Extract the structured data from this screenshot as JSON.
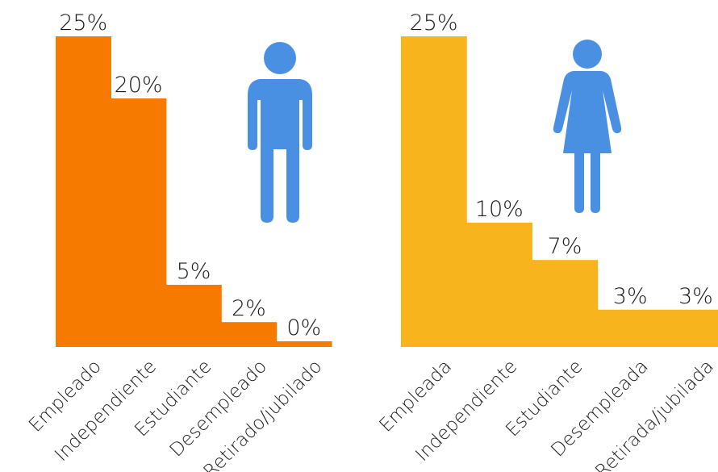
{
  "chart_data": [
    {
      "type": "bar",
      "categories": [
        "Empleado",
        "Independiente",
        "Estudiante",
        "Desempleado",
        "Retirado/jubilado"
      ],
      "values": [
        25,
        20,
        5,
        2,
        0
      ],
      "value_labels": [
        "25%",
        "20%",
        "5%",
        "2%",
        "0%"
      ],
      "ylim": [
        0,
        25
      ],
      "color": "#F77A00",
      "icon": "man-icon",
      "icon_color": "#4A90E2"
    },
    {
      "type": "bar",
      "categories": [
        "Empleada",
        "Independiente",
        "Estudiante",
        "Desempleada",
        "Retirada/jubilada"
      ],
      "values": [
        25,
        10,
        7,
        3,
        3
      ],
      "value_labels": [
        "25%",
        "10%",
        "7%",
        "3%",
        "3%"
      ],
      "ylim": [
        0,
        25
      ],
      "color": "#F8B41C",
      "icon": "woman-icon",
      "icon_color": "#4A90E2"
    }
  ]
}
